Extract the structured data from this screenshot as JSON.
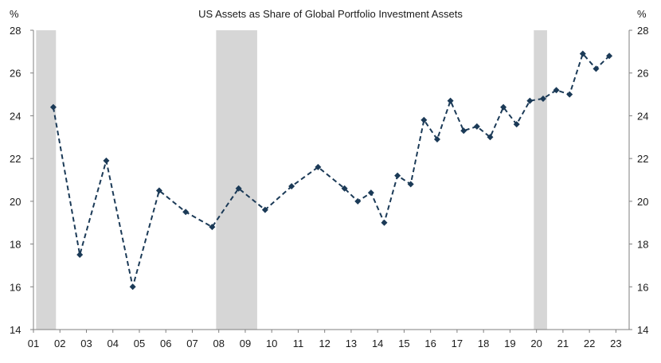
{
  "chart_data": {
    "type": "line",
    "title": "US Assets as Share of Global Portfolio Investment Assets",
    "y_unit_left": "%",
    "y_unit_right": "%",
    "ylim": [
      14,
      28
    ],
    "yticks": [
      14,
      16,
      18,
      20,
      22,
      24,
      26,
      28
    ],
    "xlim": [
      1,
      23.5
    ],
    "x_tick_labels": [
      "01",
      "02",
      "03",
      "04",
      "05",
      "06",
      "07",
      "08",
      "09",
      "10",
      "11",
      "12",
      "13",
      "14",
      "15",
      "16",
      "17",
      "18",
      "19",
      "20",
      "21",
      "22",
      "23"
    ],
    "recessions": [
      {
        "start": 1.1,
        "end": 1.85
      },
      {
        "start": 7.9,
        "end": 9.45
      },
      {
        "start": 19.9,
        "end": 20.4
      }
    ],
    "series": [
      {
        "name": "US Assets as Share of Global Portfolio Investment Assets",
        "color": "#1b3a57",
        "x": [
          1.75,
          2.75,
          3.75,
          4.75,
          5.75,
          6.75,
          7.75,
          8.75,
          9.75,
          10.75,
          11.75,
          12.75,
          13.25,
          13.75,
          14.25,
          14.75,
          15.25,
          15.75,
          16.25,
          16.75,
          17.25,
          17.75,
          18.25,
          18.75,
          19.25,
          19.75,
          20.25,
          20.75,
          21.25,
          21.75,
          22.25,
          22.75
        ],
        "values": [
          24.4,
          17.5,
          21.9,
          16.0,
          20.5,
          19.5,
          18.8,
          20.6,
          19.6,
          20.7,
          21.6,
          20.6,
          20.0,
          20.4,
          19.0,
          21.2,
          20.8,
          23.8,
          22.9,
          24.7,
          23.3,
          23.5,
          23.0,
          24.4,
          23.6,
          24.7,
          24.8,
          25.2,
          25.0,
          26.9,
          26.2,
          26.8
        ]
      }
    ]
  }
}
